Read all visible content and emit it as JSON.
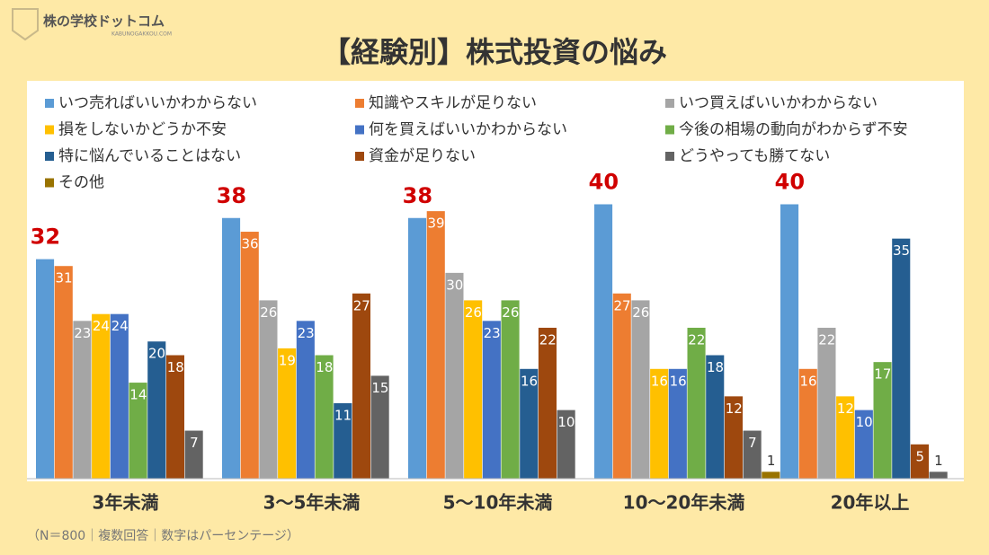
{
  "header": {
    "logo": "株の学校ドットコム",
    "logo_sub": "KABUNOGAKKOU.COM"
  },
  "chart_data": {
    "type": "bar",
    "title": "【経験別】株式投資の悩み",
    "categories": [
      "3年未満",
      "3～5年未満",
      "5～10年未満",
      "10～20年未満",
      "20年以上"
    ],
    "series": [
      {
        "name": "いつ売ればいいかわからない",
        "color": "#5b9bd5",
        "values": [
          32,
          38,
          38,
          40,
          40
        ],
        "highlight": true
      },
      {
        "name": "知識やスキルが足りない",
        "color": "#ed7d31",
        "values": [
          31,
          36,
          39,
          27,
          16
        ]
      },
      {
        "name": "いつ買えばいいかわからない",
        "color": "#a5a5a5",
        "values": [
          23,
          26,
          30,
          26,
          22
        ]
      },
      {
        "name": "損をしないかどうか不安",
        "color": "#ffc000",
        "values": [
          24,
          19,
          26,
          16,
          12
        ]
      },
      {
        "name": "何を買えばいいかわからない",
        "color": "#4472c4",
        "values": [
          24,
          23,
          23,
          16,
          10
        ]
      },
      {
        "name": "今後の相場の動向がわからず不安",
        "color": "#70ad47",
        "values": [
          14,
          18,
          26,
          22,
          17
        ]
      },
      {
        "name": "特に悩んでいることはない",
        "color": "#255e91",
        "values": [
          20,
          11,
          16,
          18,
          35
        ]
      },
      {
        "name": "資金が足りない",
        "color": "#9e480e",
        "values": [
          18,
          27,
          22,
          12,
          5
        ]
      },
      {
        "name": "どうやっても勝てない",
        "color": "#636363",
        "values": [
          7,
          15,
          10,
          7,
          1
        ]
      },
      {
        "name": "その他",
        "color": "#997300",
        "values": [
          null,
          null,
          null,
          1,
          null
        ]
      }
    ],
    "ylim": [
      0,
      58
    ],
    "note": "（N＝800｜複数回答｜数字はパーセンテージ）"
  }
}
